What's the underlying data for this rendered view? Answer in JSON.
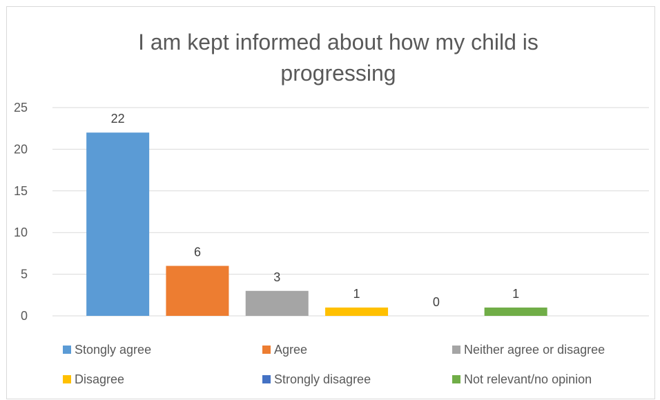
{
  "chart_data": {
    "type": "bar",
    "title": "I am kept informed about how my child is progressing",
    "title_lines": [
      "I am kept informed about how my child is",
      "progressing"
    ],
    "xlabel": "",
    "ylabel": "",
    "ylim": [
      0,
      25
    ],
    "yticks": [
      0,
      5,
      10,
      15,
      20,
      25
    ],
    "grid": true,
    "legend_position": "bottom",
    "show_data_labels": true,
    "categories": [
      "Stongly agree",
      "Agree",
      "Neither agree or disagree",
      "Disagree",
      "Strongly disagree",
      "Not relevant/no opinion"
    ],
    "values": [
      22,
      6,
      3,
      1,
      0,
      1
    ],
    "colors": [
      "#5b9bd5",
      "#ed7d31",
      "#a5a5a5",
      "#ffc000",
      "#4472c4",
      "#70ad47"
    ]
  }
}
